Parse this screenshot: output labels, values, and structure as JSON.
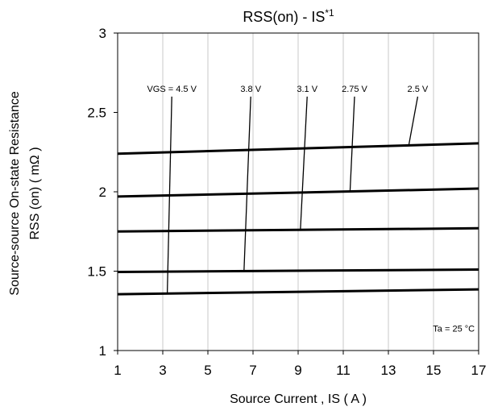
{
  "chart_data": {
    "type": "line",
    "title": "RSS(on) - IS",
    "title_superscript": "*1",
    "xlabel": "Source Current , IS ( A )",
    "ylabel_line1": "Source-source On-state Resistance",
    "ylabel_line2": "RSS (on) ( mΩ )",
    "xlim": [
      1,
      17
    ],
    "ylim": [
      1,
      3
    ],
    "xticks": [
      "1",
      "3",
      "5",
      "7",
      "9",
      "11",
      "13",
      "15",
      "17"
    ],
    "yticks": [
      "1",
      "1.5",
      "2",
      "2.5",
      "3"
    ],
    "grid": "vertical",
    "series": [
      {
        "name": "VGS = 4.5 V",
        "x": [
          1,
          17
        ],
        "y": [
          1.355,
          1.385
        ]
      },
      {
        "name": "3.8 V",
        "x": [
          1,
          17
        ],
        "y": [
          1.495,
          1.51
        ]
      },
      {
        "name": "3.1 V",
        "x": [
          1,
          17
        ],
        "y": [
          1.75,
          1.77
        ]
      },
      {
        "name": "2.75 V",
        "x": [
          1,
          17
        ],
        "y": [
          1.97,
          2.02
        ]
      },
      {
        "name": "2.5 V",
        "x": [
          1,
          17
        ],
        "y": [
          2.24,
          2.305
        ]
      }
    ],
    "leaders": [
      {
        "label_x": 3.4,
        "label_y": 2.63,
        "line_x": 3.2,
        "line_y": 1.36
      },
      {
        "label_x": 6.9,
        "label_y": 2.63,
        "line_x": 6.6,
        "line_y": 1.5
      },
      {
        "label_x": 9.4,
        "label_y": 2.63,
        "line_x": 9.1,
        "line_y": 1.76
      },
      {
        "label_x": 11.5,
        "label_y": 2.63,
        "line_x": 11.3,
        "line_y": 2.0
      },
      {
        "label_x": 14.3,
        "label_y": 2.63,
        "line_x": 13.9,
        "line_y": 2.29
      }
    ],
    "annotation": "Ta = 25 °C",
    "annotation_pos": {
      "x": 15.9,
      "y": 1.12
    }
  }
}
